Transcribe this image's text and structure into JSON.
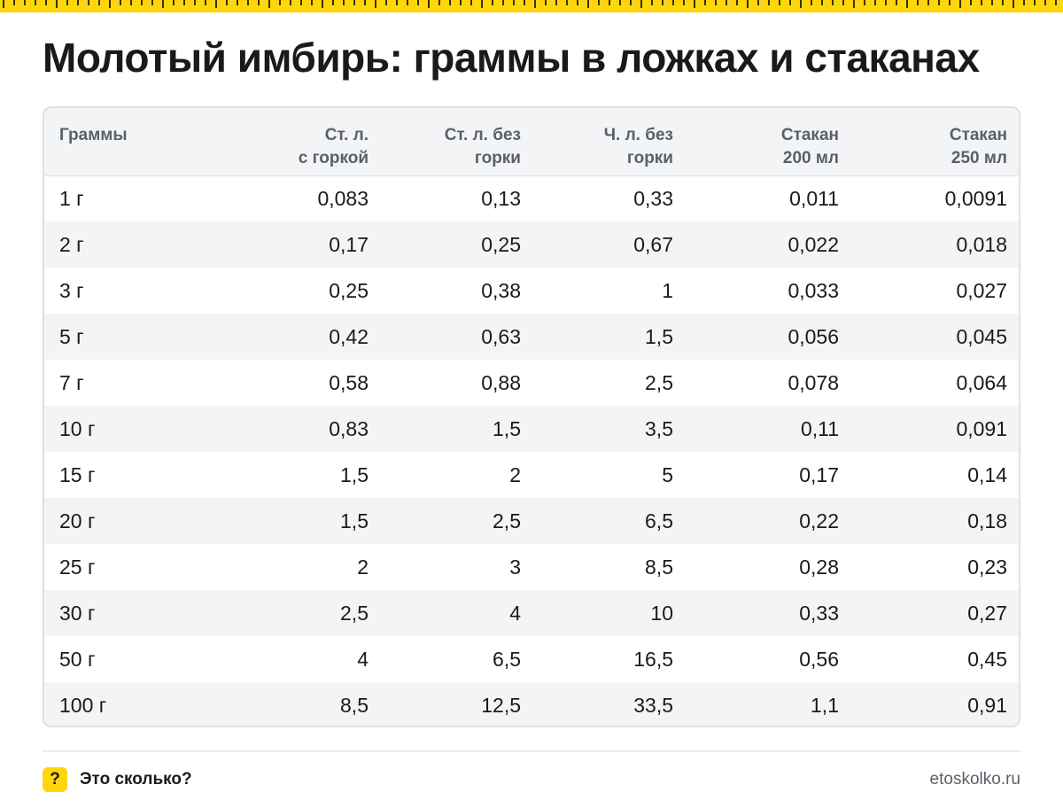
{
  "title": "Молотый имбирь: граммы в ложках и стаканах",
  "table": {
    "headers": [
      [
        "Граммы",
        ""
      ],
      [
        "Ст. л.",
        "с горкой"
      ],
      [
        "Ст. л. без",
        "горки"
      ],
      [
        "Ч. л. без",
        "горки"
      ],
      [
        "Стакан",
        "200 мл"
      ],
      [
        "Стакан",
        "250 мл"
      ]
    ],
    "rows": [
      [
        "1 г",
        "0,083",
        "0,13",
        "0,33",
        "0,011",
        "0,0091"
      ],
      [
        "2 г",
        "0,17",
        "0,25",
        "0,67",
        "0,022",
        "0,018"
      ],
      [
        "3 г",
        "0,25",
        "0,38",
        "1",
        "0,033",
        "0,027"
      ],
      [
        "5 г",
        "0,42",
        "0,63",
        "1,5",
        "0,056",
        "0,045"
      ],
      [
        "7 г",
        "0,58",
        "0,88",
        "2,5",
        "0,078",
        "0,064"
      ],
      [
        "10 г",
        "0,83",
        "1,5",
        "3,5",
        "0,11",
        "0,091"
      ],
      [
        "15 г",
        "1,5",
        "2",
        "5",
        "0,17",
        "0,14"
      ],
      [
        "20 г",
        "1,5",
        "2,5",
        "6,5",
        "0,22",
        "0,18"
      ],
      [
        "25 г",
        "2",
        "3",
        "8,5",
        "0,28",
        "0,23"
      ],
      [
        "30 г",
        "2,5",
        "4",
        "10",
        "0,33",
        "0,27"
      ],
      [
        "50 г",
        "4",
        "6,5",
        "16,5",
        "0,56",
        "0,45"
      ],
      [
        "100 г",
        "8,5",
        "12,5",
        "33,5",
        "1,1",
        "0,91"
      ]
    ]
  },
  "footer": {
    "badge": "?",
    "brand": "Это сколько?",
    "site": "etoskolko.ru"
  },
  "colors": {
    "accent": "#ffd60a",
    "header_bg": "#f3f4f6",
    "header_text": "#5a6069",
    "text": "#1a1a1a"
  }
}
